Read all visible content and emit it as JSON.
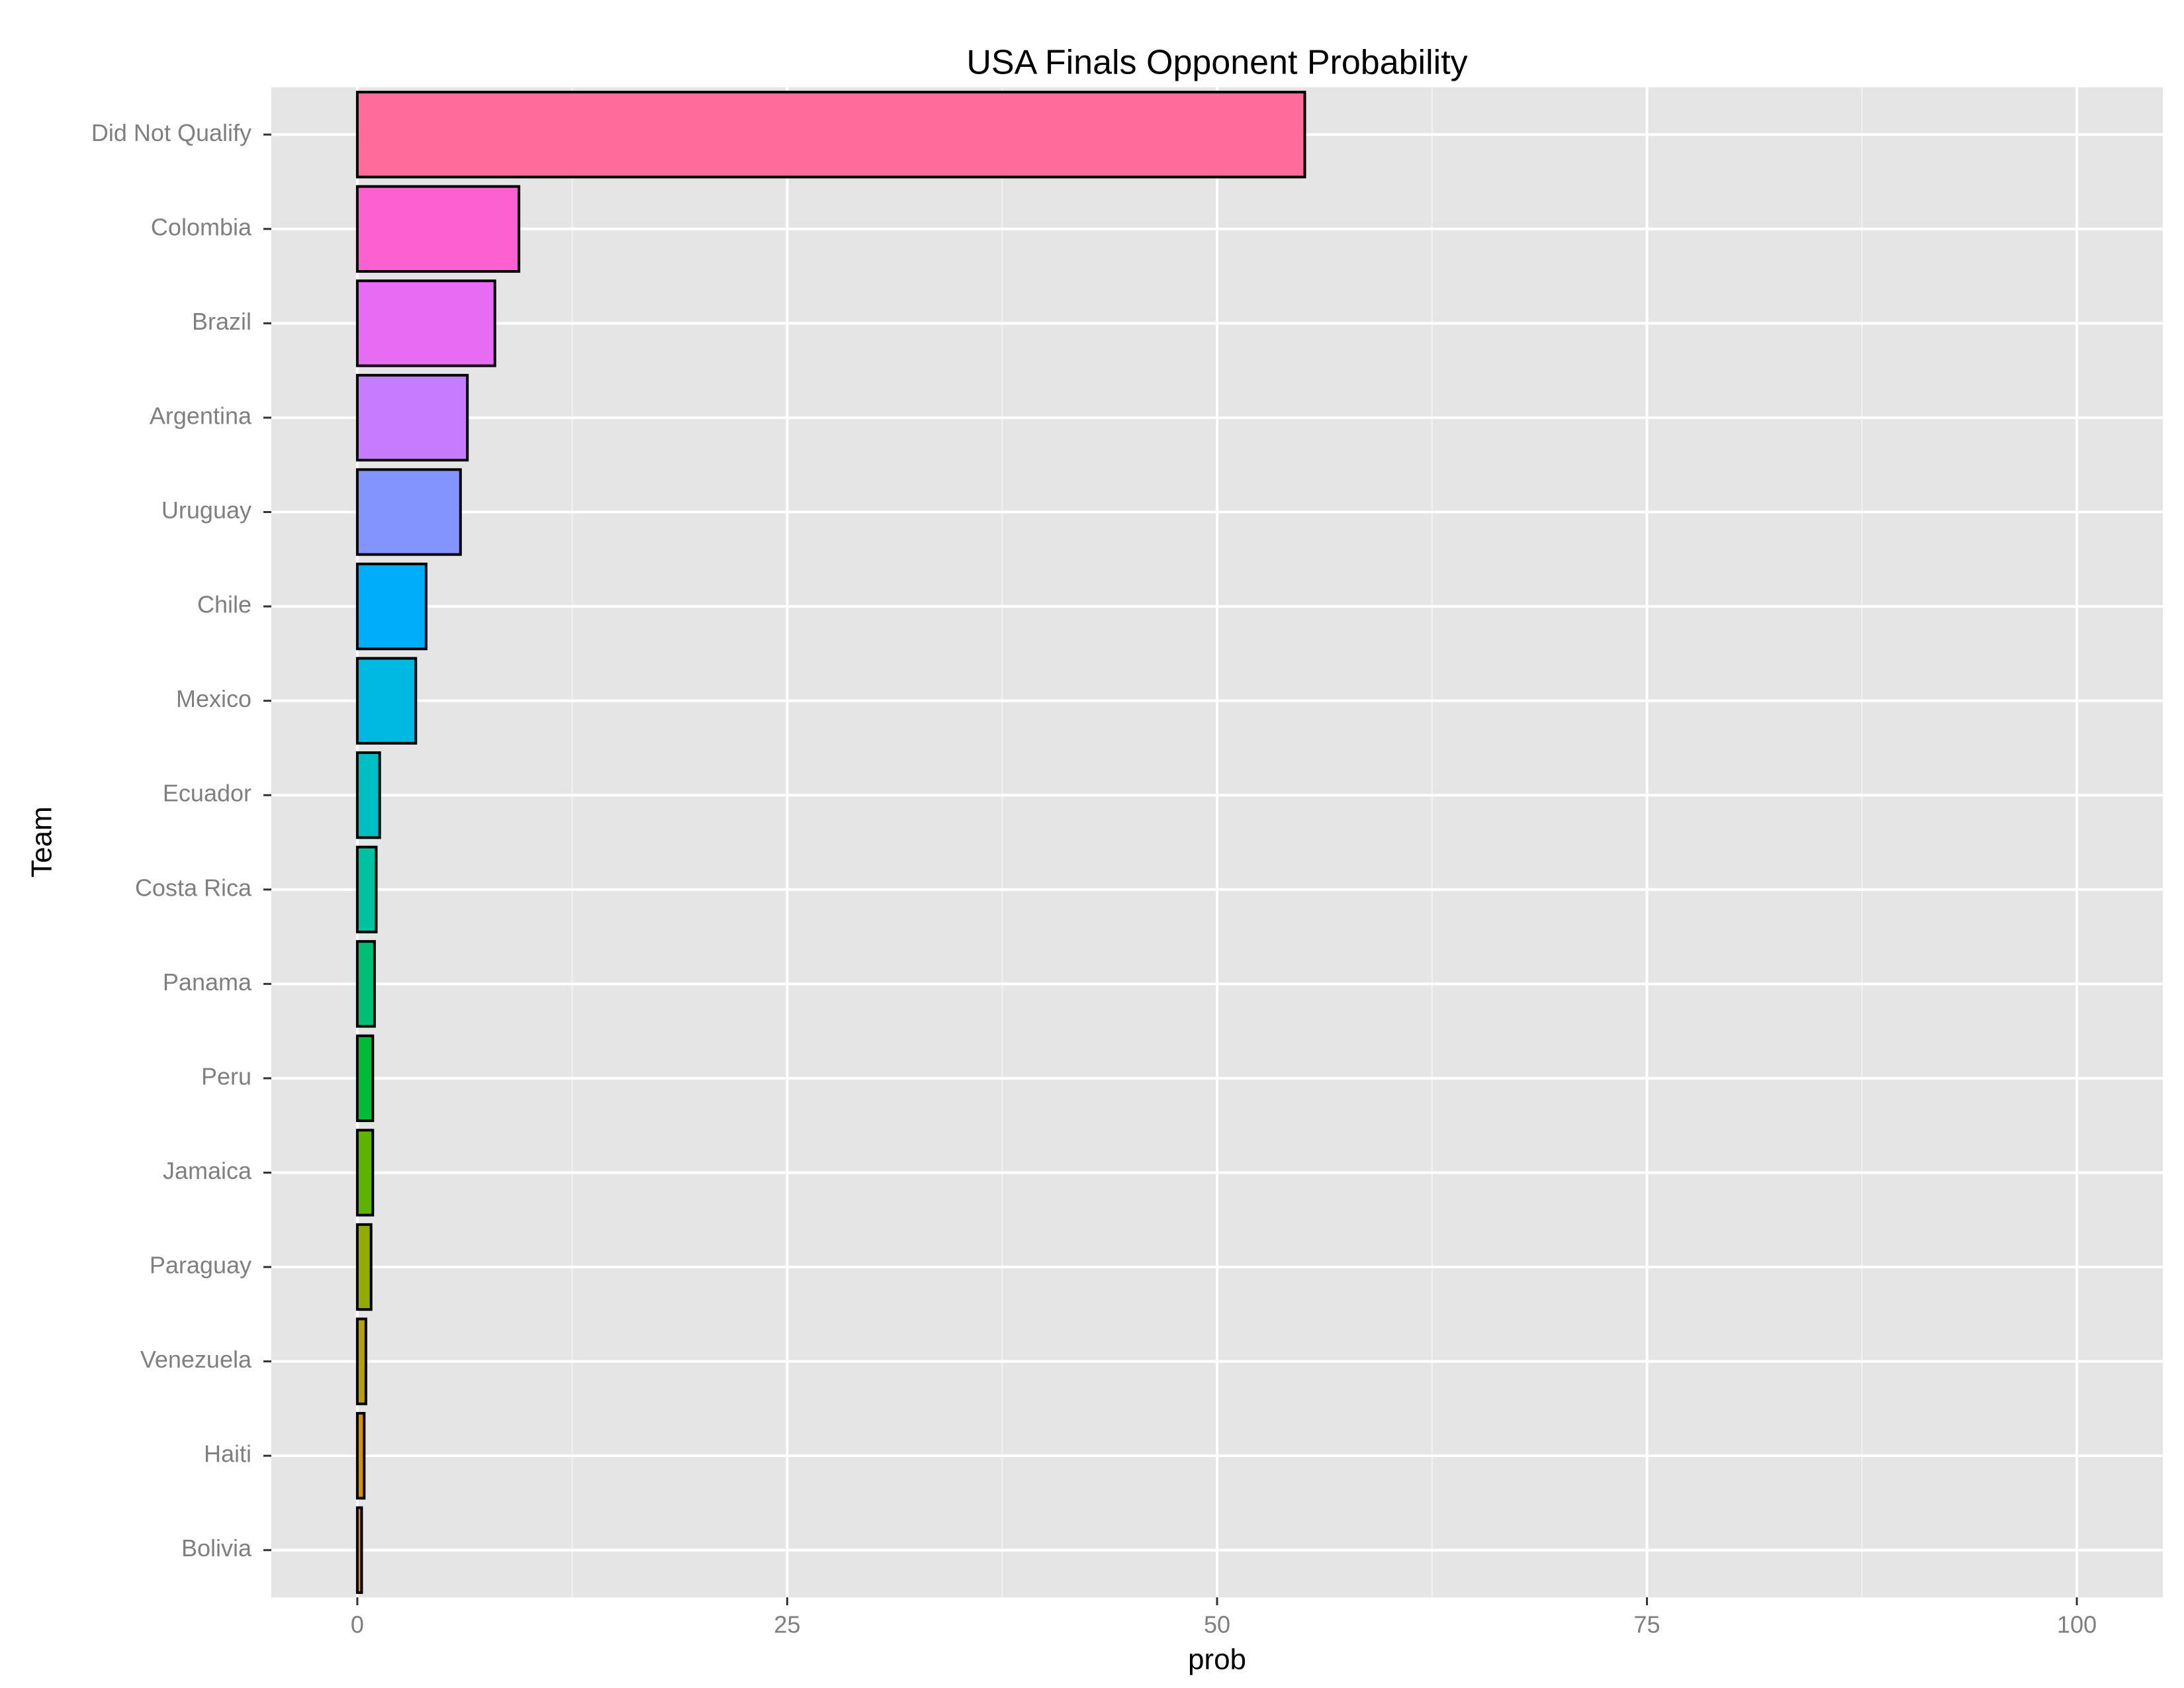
{
  "chart_data": {
    "type": "barh",
    "title": "USA Finals Opponent Probability",
    "x_label": "prob",
    "y_label": "Team",
    "categories": [
      "Did Not Qualify",
      "Colombia",
      "Brazil",
      "Argentina",
      "Uruguay",
      "Chile",
      "Mexico",
      "Ecuador",
      "Costa Rica",
      "Panama",
      "Peru",
      "Jamaica",
      "Paraguay",
      "Venezuela",
      "Haiti",
      "Bolivia"
    ],
    "values": [
      55.1,
      9.4,
      8.0,
      6.4,
      6.0,
      4.0,
      3.4,
      1.3,
      1.1,
      1.0,
      0.9,
      0.9,
      0.8,
      0.5,
      0.4,
      0.25
    ],
    "colors": [
      "#FF6C9C",
      "#FD61D1",
      "#E76BF3",
      "#C77CFF",
      "#8494FF",
      "#00ADFA",
      "#00B9E3",
      "#00BFC4",
      "#00C19F",
      "#00BF74",
      "#00BA38",
      "#5EB300",
      "#93AA00",
      "#B79F00",
      "#D39200",
      "#E88526"
    ],
    "xlim": [
      -5,
      105
    ],
    "xticks": [
      0,
      25,
      50,
      75,
      100
    ],
    "grid": true
  }
}
